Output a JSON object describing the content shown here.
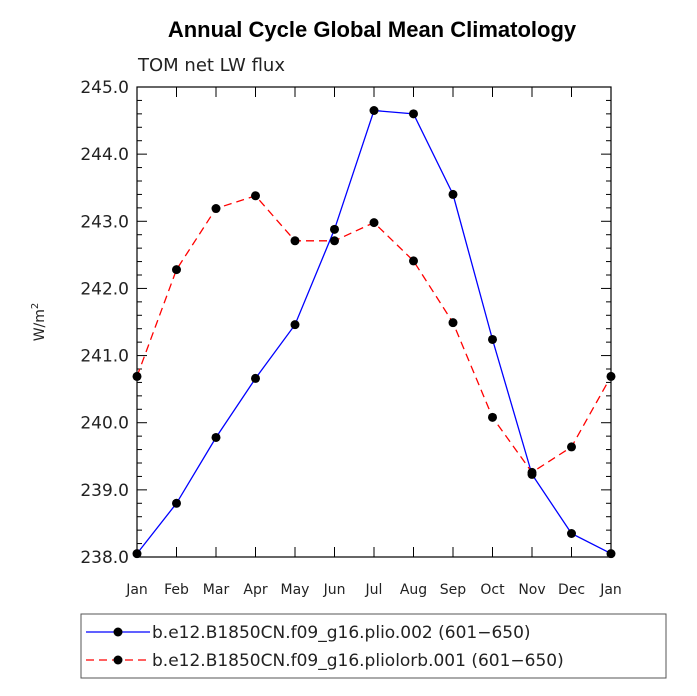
{
  "chart_data": {
    "type": "line",
    "title": "Annual Cycle Global Mean Climatology",
    "subtitle": "TOM net LW flux",
    "ylabel": "W/m",
    "ylabel_sup": "2",
    "xlabel": "",
    "categories": [
      "Jan",
      "Feb",
      "Mar",
      "Apr",
      "May",
      "Jun",
      "Jul",
      "Aug",
      "Sep",
      "Oct",
      "Nov",
      "Dec",
      "Jan"
    ],
    "ylim": [
      238.0,
      245.0
    ],
    "yticks": [
      "238.0",
      "239.0",
      "240.0",
      "241.0",
      "242.0",
      "243.0",
      "244.0",
      "245.0"
    ],
    "grid": false,
    "legend_position": "bottom",
    "series": [
      {
        "name": "b.e12.B1850CN.f09_g16.plio.002 (601−650)",
        "color": "#0000ff",
        "dash": "solid",
        "values": [
          238.05,
          238.8,
          239.78,
          240.66,
          241.46,
          242.88,
          244.65,
          244.6,
          243.4,
          241.24,
          239.23,
          238.35,
          238.05
        ]
      },
      {
        "name": "b.e12.B1850CN.f09_g16.pliolorb.001 (601−650)",
        "color": "#ff0000",
        "dash": "dashed",
        "values": [
          240.69,
          242.28,
          243.19,
          243.38,
          242.71,
          242.71,
          242.98,
          242.41,
          241.49,
          240.08,
          239.26,
          239.64,
          240.69
        ]
      }
    ]
  }
}
